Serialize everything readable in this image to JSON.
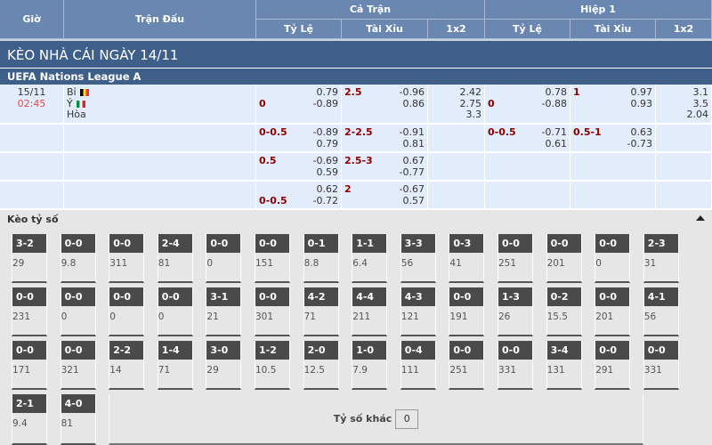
{
  "header": {
    "gio": "Giờ",
    "tran_dau": "Trận Đấu",
    "ca_tran": "Cả Trận",
    "hiep1": "Hiệp 1",
    "ty_le": "Tỷ Lệ",
    "tai_xiu": "Tài Xỉu",
    "x12": "1x2"
  },
  "title": "KÈO NHÀ CÁI NGÀY 14/11",
  "league": "UEFA Nations League A",
  "match": {
    "date": "15/11",
    "time": "02:45",
    "home": "Bỉ",
    "away": "Ý",
    "draw": "Hòa",
    "home_flag": "belgium-flag",
    "away_flag": "italy-flag"
  },
  "rows": [
    {
      "ft_hdp": {
        "line": "0",
        "fav": "away",
        "a": "0.79",
        "b": "-0.89"
      },
      "ft_ou": {
        "line": "2.5",
        "a": "-0.96",
        "b": "0.86"
      },
      "ft_1x2": [
        "2.42",
        "2.75",
        "3.3"
      ],
      "h1_hdp": {
        "line": "0",
        "fav": "away",
        "a": "0.78",
        "b": "-0.88"
      },
      "h1_ou": {
        "line": "1",
        "a": "0.97",
        "b": "0.93"
      },
      "h1_1x2": [
        "3.1",
        "3.5",
        "2.04"
      ]
    },
    {
      "ft_hdp": {
        "line": "0-0.5",
        "fav": "home",
        "a": "-0.89",
        "b": "0.79"
      },
      "ft_ou": {
        "line": "2-2.5",
        "a": "-0.91",
        "b": "0.81"
      },
      "ft_1x2": [],
      "h1_hdp": {
        "line": "0-0.5",
        "fav": "home",
        "a": "-0.71",
        "b": "0.61"
      },
      "h1_ou": {
        "line": "0.5-1",
        "a": "0.63",
        "b": "-0.73"
      },
      "h1_1x2": []
    },
    {
      "ft_hdp": {
        "line": "0.5",
        "fav": "home",
        "a": "-0.69",
        "b": "0.59"
      },
      "ft_ou": {
        "line": "2.5-3",
        "a": "0.67",
        "b": "-0.77"
      },
      "ft_1x2": [],
      "h1_hdp": null,
      "h1_ou": null,
      "h1_1x2": []
    },
    {
      "ft_hdp": {
        "line": "0-0.5",
        "fav": "away",
        "a": "0.62",
        "b": "-0.72"
      },
      "ft_ou": {
        "line": "2",
        "a": "-0.67",
        "b": "0.57"
      },
      "ft_1x2": [],
      "h1_hdp": null,
      "h1_ou": null,
      "h1_1x2": []
    }
  ],
  "keo_ty_so": {
    "label": "Kèo tỷ số",
    "toggle_icon": "caret-up-icon",
    "scores": [
      [
        "3-2",
        "29"
      ],
      [
        "0-0",
        "9.8"
      ],
      [
        "0-0",
        "311"
      ],
      [
        "2-4",
        "81"
      ],
      [
        "0-0",
        "0"
      ],
      [
        "0-0",
        "151"
      ],
      [
        "0-1",
        "8.8"
      ],
      [
        "1-1",
        "6.4"
      ],
      [
        "3-3",
        "56"
      ],
      [
        "0-3",
        "41"
      ],
      [
        "0-0",
        "251"
      ],
      [
        "0-0",
        "201"
      ],
      [
        "0-0",
        "0"
      ],
      [
        "2-3",
        "31"
      ],
      [
        "0-0",
        "231"
      ],
      [
        "0-0",
        "0"
      ],
      [
        "0-0",
        "0"
      ],
      [
        "0-0",
        "0"
      ],
      [
        "3-1",
        "21"
      ],
      [
        "0-0",
        "301"
      ],
      [
        "4-2",
        "71"
      ],
      [
        "4-4",
        "211"
      ],
      [
        "4-3",
        "121"
      ],
      [
        "0-0",
        "191"
      ],
      [
        "1-3",
        "26"
      ],
      [
        "0-2",
        "15.5"
      ],
      [
        "0-0",
        "201"
      ],
      [
        "4-1",
        "56"
      ],
      [
        "0-0",
        "171"
      ],
      [
        "0-0",
        "321"
      ],
      [
        "2-2",
        "14"
      ],
      [
        "1-4",
        "71"
      ],
      [
        "3-0",
        "29"
      ],
      [
        "1-2",
        "10.5"
      ],
      [
        "2-0",
        "12.5"
      ],
      [
        "1-0",
        "7.9"
      ],
      [
        "0-4",
        "111"
      ],
      [
        "0-0",
        "251"
      ],
      [
        "0-0",
        "331"
      ],
      [
        "3-4",
        "131"
      ],
      [
        "0-0",
        "291"
      ],
      [
        "0-0",
        "331"
      ],
      [
        "2-1",
        "9.4"
      ],
      [
        "4-0",
        "81"
      ]
    ],
    "other_label": "Tỷ số khác",
    "other_value": "0"
  },
  "colors": {
    "header": "#6a87b2",
    "title_bar": "#3e5f8a",
    "row": "#e3ecfb",
    "line": "#8b0000",
    "time": "#e8474c",
    "score_tag": "#4a4a4a"
  }
}
